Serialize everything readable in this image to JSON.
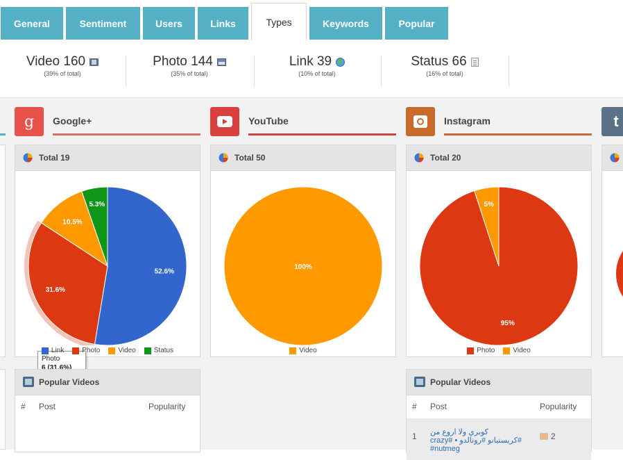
{
  "tabs": [
    {
      "label": "General"
    },
    {
      "label": "Sentiment"
    },
    {
      "label": "Users"
    },
    {
      "label": "Links"
    },
    {
      "label": "Types"
    },
    {
      "label": "Keywords"
    },
    {
      "label": "Popular"
    }
  ],
  "stats": [
    {
      "label": "Video 160",
      "sub": "(39% of total)",
      "icon": "film-icon"
    },
    {
      "label": "Photo 144",
      "sub": "(35% of total)",
      "icon": "photo-icon"
    },
    {
      "label": "Link 39",
      "sub": "(10% of total)",
      "icon": "globe-icon"
    },
    {
      "label": "Status 66",
      "sub": "(16% of total)",
      "icon": "note-icon"
    }
  ],
  "colors": {
    "link": "#3366cc",
    "photo": "#dc3912",
    "video": "#ff9900",
    "status": "#109618",
    "tab": "#56b0c5"
  },
  "networks": [
    {
      "name": "Google+",
      "icon": "googleplus-icon",
      "accent": "#dd4b39",
      "glyph": "g"
    },
    {
      "name": "YouTube",
      "icon": "youtube-icon",
      "accent": "#cd3b3b"
    },
    {
      "name": "Instagram",
      "icon": "instagram-icon",
      "accent": "#c0692d"
    },
    {
      "name": "",
      "icon": "tumblr-icon",
      "accent": "#5a7186",
      "glyph": "t"
    }
  ],
  "chart_data": [
    {
      "type": "pie",
      "title": "Total 19",
      "slices": [
        {
          "label": "Link",
          "value": 52.6,
          "display": "52.6%"
        },
        {
          "label": "Photo",
          "value": 31.6,
          "display": "31.6%"
        },
        {
          "label": "Video",
          "value": 10.5,
          "display": "10.5%"
        },
        {
          "label": "Status",
          "value": 5.3,
          "display": "5.3%"
        }
      ],
      "legend": [
        "Link",
        "Photo",
        "Video",
        "Status"
      ],
      "legend_position": "bottom",
      "tooltip": {
        "line1": "Photo",
        "line2": "6 (31.6%)"
      }
    },
    {
      "type": "pie",
      "title": "Total 50",
      "slices": [
        {
          "label": "Video",
          "value": 100,
          "display": "100%"
        }
      ],
      "legend": [
        "Video"
      ],
      "legend_position": "bottom"
    },
    {
      "type": "pie",
      "title": "Total 20",
      "slices": [
        {
          "label": "Photo",
          "value": 95,
          "display": "95%"
        },
        {
          "label": "Video",
          "value": 5,
          "display": "5%"
        }
      ],
      "legend": [
        "Photo",
        "Video"
      ],
      "legend_position": "bottom"
    }
  ],
  "popular": {
    "title": "Popular Videos",
    "col_num": "#",
    "col_post": "Post",
    "col_popularity": "Popularity",
    "rows": [
      {
        "num": "1",
        "post": "كوبري ولا اروع من #كريستيانو #رونالدو • #crazy #nutmeg",
        "popularity": "2"
      }
    ]
  }
}
